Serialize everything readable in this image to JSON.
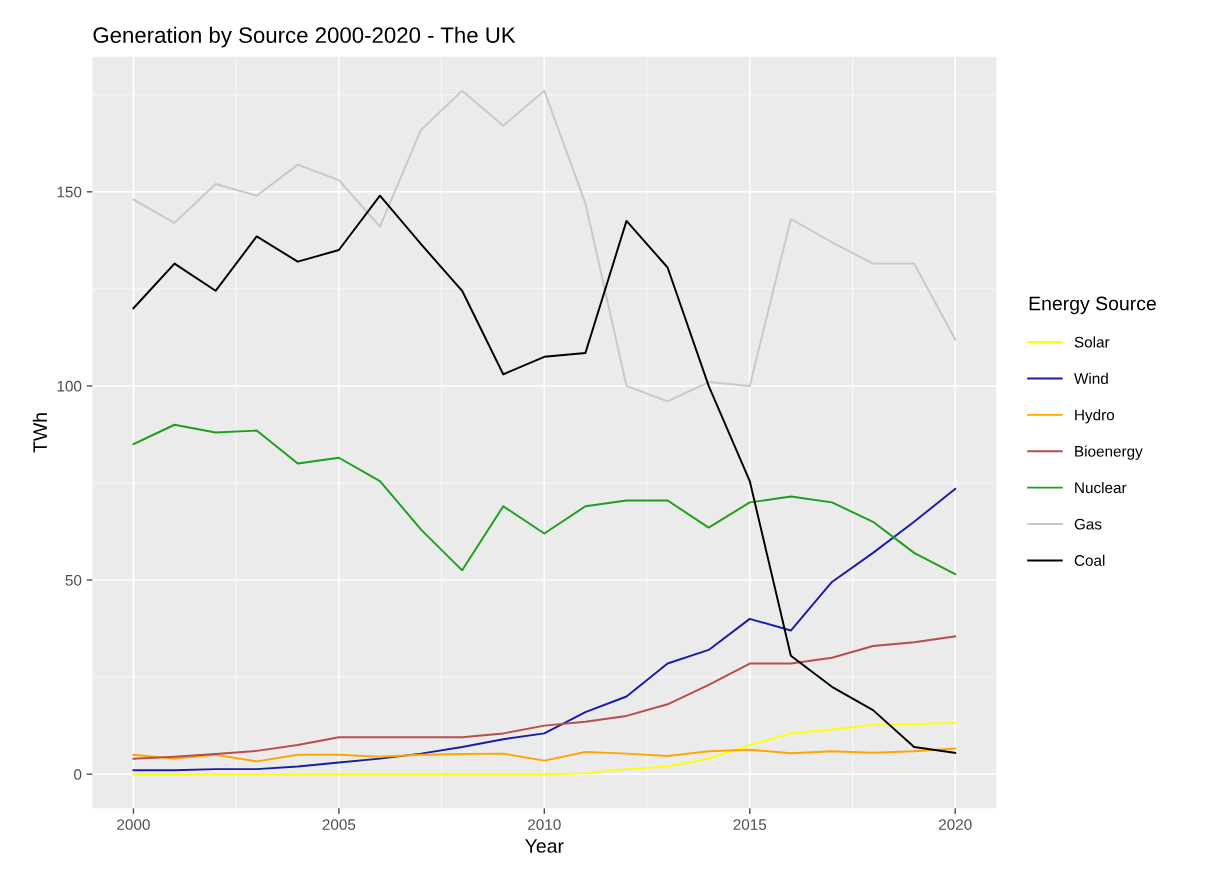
{
  "chart_data": {
    "type": "line",
    "title": "Generation by Source 2000-2020 - The UK",
    "xlabel": "Year",
    "ylabel": "TWh",
    "legend_title": "Energy Source",
    "x": [
      2000,
      2001,
      2002,
      2003,
      2004,
      2005,
      2006,
      2007,
      2008,
      2009,
      2010,
      2011,
      2012,
      2013,
      2014,
      2015,
      2016,
      2017,
      2018,
      2019,
      2020
    ],
    "series": [
      {
        "name": "Solar",
        "color": "#ffff00",
        "values": [
          0,
          0,
          0,
          0,
          0,
          0,
          0,
          0,
          0,
          0,
          0,
          0.2,
          1.3,
          2,
          4,
          7.5,
          10.5,
          11.5,
          12.7,
          12.9,
          13.2
        ]
      },
      {
        "name": "Wind",
        "color": "#1c1caa",
        "values": [
          1,
          1,
          1.3,
          1.3,
          2,
          3,
          4,
          5.3,
          7,
          9,
          10.5,
          16,
          20,
          28.5,
          32,
          40,
          37,
          49.5,
          57,
          65,
          73.5
        ]
      },
      {
        "name": "Hydro",
        "color": "#ffa500",
        "values": [
          5,
          4,
          5,
          3.3,
          5,
          5,
          4.5,
          5,
          5.2,
          5.3,
          3.5,
          5.7,
          5.3,
          4.7,
          5.9,
          6.3,
          5.4,
          5.9,
          5.5,
          5.9,
          6.6
        ]
      },
      {
        "name": "Bioenergy",
        "color": "#b84d4d",
        "values": [
          4,
          4.5,
          5.2,
          6,
          7.5,
          9.5,
          9.5,
          9.5,
          9.5,
          10.5,
          12.5,
          13.5,
          15,
          18,
          23,
          28.5,
          28.5,
          30,
          33,
          34,
          35.5
        ]
      },
      {
        "name": "Nuclear",
        "color": "#1ca01c",
        "values": [
          85,
          90,
          88,
          88.5,
          80,
          81.5,
          75.5,
          63,
          52.5,
          69,
          62,
          69,
          70.5,
          70.5,
          63.5,
          70,
          71.5,
          70,
          65,
          57,
          51.5
        ]
      },
      {
        "name": "Gas",
        "color": "#c8c8c8",
        "values": [
          148,
          142,
          152,
          149,
          157,
          153,
          141,
          166,
          176,
          167,
          176,
          147,
          100,
          96,
          101,
          100,
          143,
          137,
          131.5,
          131.5,
          112
        ]
      },
      {
        "name": "Coal",
        "color": "#000000",
        "values": [
          120,
          131.5,
          124.5,
          138.5,
          132,
          135,
          149,
          136.5,
          124.5,
          103,
          107.5,
          108.5,
          142.5,
          130.5,
          100,
          75.5,
          30.5,
          22.5,
          16.5,
          7,
          5.5
        ]
      }
    ],
    "xlim": [
      1999,
      2021
    ],
    "xticks": [
      2000,
      2005,
      2010,
      2015,
      2020
    ],
    "ylim": [
      -8.8,
      184.8
    ],
    "yticks": [
      0,
      50,
      100,
      150
    ],
    "grid": true,
    "legend": "right",
    "line_style": "solid",
    "marker": "none"
  }
}
